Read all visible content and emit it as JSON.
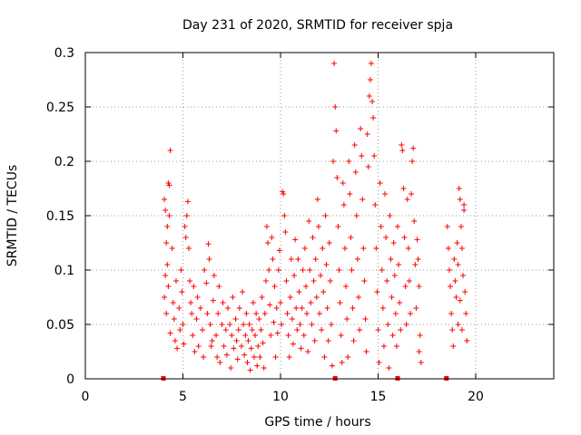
{
  "chart_data": {
    "type": "scatter",
    "title": "Day 231 of 2020, SRMTID for receiver spja",
    "xlabel": "GPS time / hours",
    "ylabel": "SRMTID / TECUs",
    "xlim": [
      0,
      24
    ],
    "ylim": [
      0,
      0.3
    ],
    "x_ticks": [
      0,
      5,
      10,
      15,
      20
    ],
    "y_ticks": [
      0,
      0.05,
      0.1,
      0.15,
      0.2,
      0.25,
      0.3
    ],
    "x_tick_labels": [
      "0",
      "5",
      "10",
      "15",
      "20"
    ],
    "y_tick_labels": [
      "0",
      "0.05",
      "0.1",
      "0.15",
      "0.2",
      "0.25",
      "0.3"
    ],
    "grid": true,
    "marker": "+",
    "color": "#ff0000",
    "series": [
      {
        "name": "SRMTID",
        "points": [
          [
            4.05,
            0.165
          ],
          [
            4.1,
            0.155
          ],
          [
            4.15,
            0.125
          ],
          [
            4.2,
            0.105
          ],
          [
            4.25,
            0.18
          ],
          [
            4.3,
            0.178
          ],
          [
            4.35,
            0.21
          ],
          [
            4.3,
            0.15
          ],
          [
            4.2,
            0.14
          ],
          [
            4.1,
            0.095
          ],
          [
            4.05,
            0.075
          ],
          [
            4.15,
            0.06
          ],
          [
            4.25,
            0.085
          ],
          [
            4.35,
            0.042
          ],
          [
            4.45,
            0.12
          ],
          [
            4.5,
            0.07
          ],
          [
            4.55,
            0.055
          ],
          [
            4.6,
            0.035
          ],
          [
            4.65,
            0.09
          ],
          [
            4.7,
            0.028
          ],
          [
            4.8,
            0.065
          ],
          [
            4.85,
            0.045
          ],
          [
            4.9,
            0.1
          ],
          [
            4.95,
            0.08
          ],
          [
            5.0,
            0.05
          ],
          [
            5.05,
            0.032
          ],
          [
            5.1,
            0.14
          ],
          [
            5.15,
            0.13
          ],
          [
            5.2,
            0.15
          ],
          [
            5.25,
            0.163
          ],
          [
            5.3,
            0.12
          ],
          [
            5.35,
            0.09
          ],
          [
            5.4,
            0.07
          ],
          [
            5.45,
            0.06
          ],
          [
            5.5,
            0.04
          ],
          [
            5.55,
            0.085
          ],
          [
            5.6,
            0.025
          ],
          [
            5.7,
            0.055
          ],
          [
            5.75,
            0.075
          ],
          [
            5.8,
            0.03
          ],
          [
            5.9,
            0.065
          ],
          [
            6.0,
            0.045
          ],
          [
            6.05,
            0.02
          ],
          [
            6.1,
            0.1
          ],
          [
            6.2,
            0.088
          ],
          [
            6.25,
            0.06
          ],
          [
            6.3,
            0.124
          ],
          [
            6.35,
            0.11
          ],
          [
            6.4,
            0.05
          ],
          [
            6.45,
            0.03
          ],
          [
            6.5,
            0.035
          ],
          [
            6.55,
            0.072
          ],
          [
            6.6,
            0.095
          ],
          [
            6.7,
            0.04
          ],
          [
            6.75,
            0.02
          ],
          [
            6.8,
            0.06
          ],
          [
            6.85,
            0.085
          ],
          [
            6.9,
            0.015
          ],
          [
            7.0,
            0.05
          ],
          [
            7.05,
            0.07
          ],
          [
            7.1,
            0.03
          ],
          [
            7.2,
            0.045
          ],
          [
            7.25,
            0.022
          ],
          [
            7.3,
            0.065
          ],
          [
            7.4,
            0.05
          ],
          [
            7.45,
            0.01
          ],
          [
            7.5,
            0.04
          ],
          [
            7.55,
            0.075
          ],
          [
            7.6,
            0.028
          ],
          [
            7.7,
            0.055
          ],
          [
            7.75,
            0.035
          ],
          [
            7.8,
            0.018
          ],
          [
            7.85,
            0.045
          ],
          [
            7.9,
            0.065
          ],
          [
            8.0,
            0.03
          ],
          [
            8.05,
            0.08
          ],
          [
            8.1,
            0.05
          ],
          [
            8.15,
            0.022
          ],
          [
            8.2,
            0.04
          ],
          [
            8.25,
            0.06
          ],
          [
            8.3,
            0.015
          ],
          [
            8.35,
            0.035
          ],
          [
            8.4,
            0.05
          ],
          [
            8.45,
            0.008
          ],
          [
            8.5,
            0.028
          ],
          [
            8.55,
            0.045
          ],
          [
            8.6,
            0.07
          ],
          [
            8.65,
            0.02
          ],
          [
            8.7,
            0.04
          ],
          [
            8.75,
            0.06
          ],
          [
            8.8,
            0.012
          ],
          [
            8.85,
            0.03
          ],
          [
            8.9,
            0.055
          ],
          [
            8.95,
            0.02
          ],
          [
            9.0,
            0.045
          ],
          [
            9.05,
            0.075
          ],
          [
            9.1,
            0.033
          ],
          [
            9.15,
            0.01
          ],
          [
            9.2,
            0.06
          ],
          [
            9.25,
            0.09
          ],
          [
            9.3,
            0.14
          ],
          [
            9.35,
            0.125
          ],
          [
            9.4,
            0.1
          ],
          [
            9.45,
            0.068
          ],
          [
            9.5,
            0.04
          ],
          [
            9.55,
            0.13
          ],
          [
            9.6,
            0.11
          ],
          [
            9.65,
            0.052
          ],
          [
            9.7,
            0.085
          ],
          [
            9.75,
            0.02
          ],
          [
            9.8,
            0.065
          ],
          [
            9.85,
            0.042
          ],
          [
            9.9,
            0.1
          ],
          [
            9.95,
            0.118
          ],
          [
            10.0,
            0.07
          ],
          [
            10.05,
            0.05
          ],
          [
            10.1,
            0.172
          ],
          [
            10.15,
            0.17
          ],
          [
            10.2,
            0.15
          ],
          [
            10.25,
            0.135
          ],
          [
            10.3,
            0.09
          ],
          [
            10.35,
            0.06
          ],
          [
            10.4,
            0.04
          ],
          [
            10.45,
            0.02
          ],
          [
            10.5,
            0.075
          ],
          [
            10.55,
            0.11
          ],
          [
            10.6,
            0.055
          ],
          [
            10.65,
            0.032
          ],
          [
            10.7,
            0.095
          ],
          [
            10.75,
            0.128
          ],
          [
            10.8,
            0.065
          ],
          [
            10.85,
            0.045
          ],
          [
            10.9,
            0.11
          ],
          [
            10.95,
            0.08
          ],
          [
            11.0,
            0.05
          ],
          [
            11.05,
            0.028
          ],
          [
            11.1,
            0.065
          ],
          [
            11.15,
            0.1
          ],
          [
            11.2,
            0.04
          ],
          [
            11.25,
            0.12
          ],
          [
            11.3,
            0.085
          ],
          [
            11.35,
            0.06
          ],
          [
            11.4,
            0.025
          ],
          [
            11.45,
            0.145
          ],
          [
            11.5,
            0.1
          ],
          [
            11.55,
            0.07
          ],
          [
            11.6,
            0.05
          ],
          [
            11.65,
            0.13
          ],
          [
            11.7,
            0.09
          ],
          [
            11.75,
            0.035
          ],
          [
            11.8,
            0.11
          ],
          [
            11.85,
            0.075
          ],
          [
            11.9,
            0.165
          ],
          [
            11.95,
            0.14
          ],
          [
            12.0,
            0.06
          ],
          [
            12.05,
            0.095
          ],
          [
            12.1,
            0.045
          ],
          [
            12.15,
            0.12
          ],
          [
            12.2,
            0.08
          ],
          [
            12.25,
            0.02
          ],
          [
            12.3,
            0.15
          ],
          [
            12.35,
            0.105
          ],
          [
            12.4,
            0.065
          ],
          [
            12.45,
            0.035
          ],
          [
            12.5,
            0.125
          ],
          [
            12.55,
            0.09
          ],
          [
            12.6,
            0.05
          ],
          [
            12.65,
            0.012
          ],
          [
            12.7,
            0.2
          ],
          [
            12.75,
            0.29
          ],
          [
            12.8,
            0.25
          ],
          [
            12.85,
            0.228
          ],
          [
            12.9,
            0.185
          ],
          [
            12.95,
            0.14
          ],
          [
            13.0,
            0.1
          ],
          [
            13.05,
            0.07
          ],
          [
            13.1,
            0.04
          ],
          [
            13.15,
            0.015
          ],
          [
            13.2,
            0.18
          ],
          [
            13.25,
            0.16
          ],
          [
            13.3,
            0.12
          ],
          [
            13.35,
            0.085
          ],
          [
            13.4,
            0.055
          ],
          [
            13.45,
            0.02
          ],
          [
            13.5,
            0.2
          ],
          [
            13.55,
            0.17
          ],
          [
            13.6,
            0.13
          ],
          [
            13.65,
            0.1
          ],
          [
            13.7,
            0.065
          ],
          [
            13.75,
            0.035
          ],
          [
            13.8,
            0.215
          ],
          [
            13.85,
            0.19
          ],
          [
            13.9,
            0.15
          ],
          [
            13.95,
            0.11
          ],
          [
            14.0,
            0.075
          ],
          [
            14.05,
            0.045
          ],
          [
            14.1,
            0.23
          ],
          [
            14.15,
            0.205
          ],
          [
            14.2,
            0.165
          ],
          [
            14.25,
            0.12
          ],
          [
            14.3,
            0.09
          ],
          [
            14.35,
            0.055
          ],
          [
            14.4,
            0.025
          ],
          [
            14.45,
            0.225
          ],
          [
            14.5,
            0.195
          ],
          [
            14.55,
            0.26
          ],
          [
            14.6,
            0.275
          ],
          [
            14.65,
            0.29
          ],
          [
            14.7,
            0.255
          ],
          [
            14.75,
            0.24
          ],
          [
            14.8,
            0.205
          ],
          [
            14.85,
            0.16
          ],
          [
            14.9,
            0.12
          ],
          [
            14.95,
            0.08
          ],
          [
            15.0,
            0.045
          ],
          [
            15.05,
            0.015
          ],
          [
            15.1,
            0.18
          ],
          [
            15.15,
            0.14
          ],
          [
            15.2,
            0.1
          ],
          [
            15.25,
            0.065
          ],
          [
            15.3,
            0.03
          ],
          [
            15.35,
            0.17
          ],
          [
            15.4,
            0.13
          ],
          [
            15.45,
            0.09
          ],
          [
            15.5,
            0.05
          ],
          [
            15.55,
            0.01
          ],
          [
            15.6,
            0.15
          ],
          [
            15.65,
            0.11
          ],
          [
            15.7,
            0.075
          ],
          [
            15.75,
            0.04
          ],
          [
            15.8,
            0.125
          ],
          [
            15.85,
            0.095
          ],
          [
            15.9,
            0.06
          ],
          [
            15.95,
            0.03
          ],
          [
            16.0,
            0.14
          ],
          [
            16.05,
            0.105
          ],
          [
            16.1,
            0.07
          ],
          [
            16.15,
            0.045
          ],
          [
            16.2,
            0.215
          ],
          [
            16.25,
            0.21
          ],
          [
            16.3,
            0.175
          ],
          [
            16.35,
            0.13
          ],
          [
            16.4,
            0.085
          ],
          [
            16.45,
            0.05
          ],
          [
            16.5,
            0.165
          ],
          [
            16.55,
            0.12
          ],
          [
            16.6,
            0.09
          ],
          [
            16.65,
            0.06
          ],
          [
            16.7,
            0.17
          ],
          [
            16.75,
            0.2
          ],
          [
            16.8,
            0.212
          ],
          [
            16.85,
            0.145
          ],
          [
            16.9,
            0.105
          ],
          [
            16.95,
            0.065
          ],
          [
            17.0,
            0.128
          ],
          [
            17.05,
            0.11
          ],
          [
            17.1,
            0.085
          ],
          [
            17.15,
            0.04
          ],
          [
            17.2,
            0.015
          ],
          [
            17.1,
            0.025
          ],
          [
            18.55,
            0.14
          ],
          [
            18.6,
            0.12
          ],
          [
            18.65,
            0.1
          ],
          [
            18.7,
            0.085
          ],
          [
            18.75,
            0.06
          ],
          [
            18.8,
            0.045
          ],
          [
            18.85,
            0.03
          ],
          [
            18.9,
            0.11
          ],
          [
            18.95,
            0.09
          ],
          [
            19.0,
            0.075
          ],
          [
            19.05,
            0.125
          ],
          [
            19.1,
            0.105
          ],
          [
            19.15,
            0.175
          ],
          [
            19.2,
            0.165
          ],
          [
            19.25,
            0.14
          ],
          [
            19.3,
            0.12
          ],
          [
            19.35,
            0.095
          ],
          [
            19.4,
            0.155
          ],
          [
            19.45,
            0.08
          ],
          [
            19.5,
            0.06
          ],
          [
            19.55,
            0.035
          ],
          [
            19.4,
            0.16
          ],
          [
            19.3,
            0.045
          ],
          [
            19.2,
            0.072
          ],
          [
            19.1,
            0.05
          ]
        ]
      }
    ],
    "baseline_markers": [
      {
        "x": 4.0,
        "y": 0
      },
      {
        "x": 12.8,
        "y": 0
      },
      {
        "x": 16.0,
        "y": 0
      },
      {
        "x": 18.5,
        "y": 0
      }
    ]
  }
}
